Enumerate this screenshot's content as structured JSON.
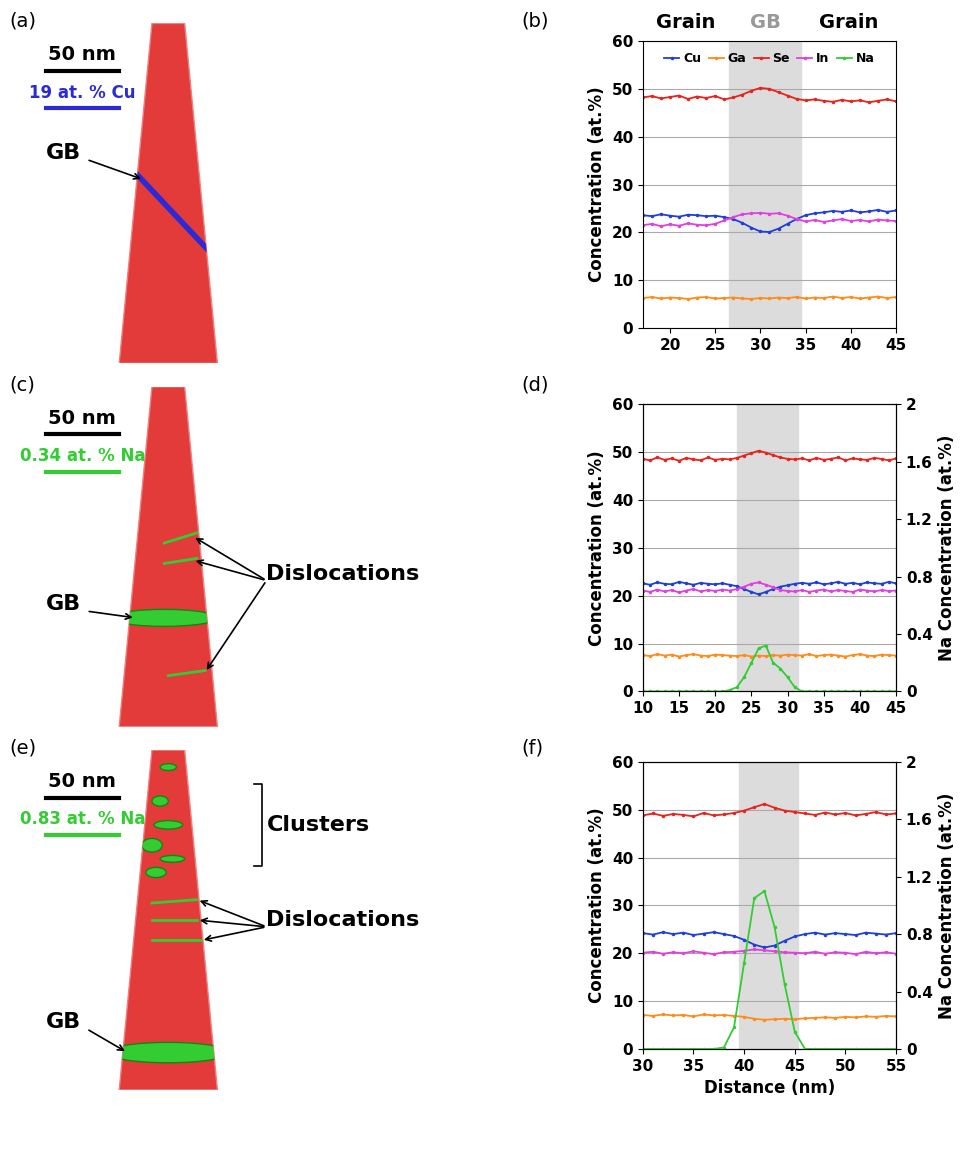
{
  "reconstructions": [
    {
      "label": "(a)",
      "scale_bar": "50 nm",
      "element_bar": {
        "text": "19 at. % Cu",
        "color": "#2a2ad6"
      },
      "annotations": [
        "GB"
      ]
    },
    {
      "label": "(c)",
      "scale_bar": "50 nm",
      "element_bar": {
        "text": "0.34 at. % Na",
        "color": "#33cc33"
      },
      "annotations": [
        "GB",
        "Dislocations"
      ]
    },
    {
      "label": "(e)",
      "scale_bar": "50 nm",
      "element_bar": {
        "text": "0.83 at. % Na",
        "color": "#33cc33"
      },
      "annotations": [
        "Clusters",
        "Dislocations",
        "GB"
      ]
    }
  ],
  "chart_data": [
    {
      "type": "line",
      "label": "(b)",
      "ylabel": "Concentration (at.%)",
      "xlim": [
        17,
        45
      ],
      "xticks": [
        20,
        25,
        30,
        35,
        40,
        45
      ],
      "ylim": [
        0,
        60
      ],
      "yticks": [
        0,
        10,
        20,
        30,
        40,
        50,
        60
      ],
      "grid": true,
      "legend": "upper center",
      "shaded_region": [
        26.5,
        34.5
      ],
      "region_labels": [
        "Grain",
        "GB",
        "Grain"
      ],
      "x": [
        17,
        18,
        19,
        20,
        21,
        22,
        23,
        24,
        25,
        26,
        27,
        28,
        29,
        30,
        31,
        32,
        33,
        34,
        35,
        36,
        37,
        38,
        39,
        40,
        41,
        42,
        43,
        44,
        45
      ],
      "series": [
        {
          "name": "Cu",
          "color": "#1f3fd6",
          "values": [
            23.6,
            23.4,
            23.8,
            23.5,
            23.3,
            23.7,
            23.6,
            23.4,
            23.5,
            23.2,
            22.8,
            22,
            21,
            20.2,
            20.1,
            20.8,
            21.8,
            22.8,
            23.6,
            24,
            24.2,
            24.5,
            24.3,
            24.6,
            24.2,
            24.4,
            24.7,
            24.3,
            24.6
          ]
        },
        {
          "name": "Ga",
          "color": "#ff8c1a",
          "values": [
            6.3,
            6.5,
            6.2,
            6.4,
            6.3,
            6.1,
            6.4,
            6.5,
            6.2,
            6.3,
            6.4,
            6.2,
            6.1,
            6.3,
            6.2,
            6.4,
            6.3,
            6.5,
            6.2,
            6.4,
            6.3,
            6.6,
            6.3,
            6.5,
            6.2,
            6.4,
            6.6,
            6.3,
            6.5
          ]
        },
        {
          "name": "Se",
          "color": "#e8221c",
          "values": [
            48.2,
            48.5,
            48,
            48.3,
            48.6,
            47.9,
            48.4,
            48.1,
            48.5,
            47.8,
            48.2,
            48.8,
            49.6,
            50.2,
            50,
            49.3,
            48.6,
            47.9,
            47.6,
            47.8,
            47.5,
            47.3,
            47.7,
            47.4,
            47.6,
            47.2,
            47.5,
            47.8,
            47.4
          ]
        },
        {
          "name": "In",
          "color": "#e040e0",
          "values": [
            21.5,
            21.8,
            21.3,
            21.7,
            21.4,
            21.9,
            21.6,
            21.5,
            21.8,
            22.5,
            23.2,
            23.8,
            24,
            24.1,
            23.9,
            24,
            23.5,
            22.8,
            22.3,
            22.6,
            22.2,
            22.5,
            22.8,
            22.4,
            22.6,
            22.3,
            22.7,
            22.5,
            22.4
          ]
        },
        {
          "name": "Na",
          "color": "#33cc33",
          "values": [
            null,
            null,
            null,
            null,
            null,
            null,
            null,
            null,
            null,
            null,
            null,
            null,
            null,
            null,
            null,
            null,
            null,
            null,
            null,
            null,
            null,
            null,
            null,
            null,
            null,
            null,
            null,
            null,
            null
          ]
        }
      ]
    },
    {
      "type": "line",
      "label": "(d)",
      "ylabel": "Concentration (at.%)",
      "y2label": "Na Concentration (at.%)",
      "xlim": [
        10,
        45
      ],
      "xticks": [
        10,
        15,
        20,
        25,
        30,
        35,
        40,
        45
      ],
      "ylim": [
        0,
        60
      ],
      "yticks": [
        0,
        10,
        20,
        30,
        40,
        50,
        60
      ],
      "y2lim": [
        0,
        2
      ],
      "y2ticks": [
        0,
        0.4,
        0.8,
        1.2,
        1.6,
        2
      ],
      "grid": true,
      "shaded_region": [
        23,
        31.5
      ],
      "x": [
        10,
        11,
        12,
        13,
        14,
        15,
        16,
        17,
        18,
        19,
        20,
        21,
        22,
        23,
        24,
        25,
        26,
        27,
        28,
        29,
        30,
        31,
        32,
        33,
        34,
        35,
        36,
        37,
        38,
        39,
        40,
        41,
        42,
        43,
        44,
        45
      ],
      "series": [
        {
          "name": "Cu",
          "color": "#1f3fd6",
          "values": [
            22.6,
            22.3,
            22.8,
            22.5,
            22.4,
            22.9,
            22.6,
            22.3,
            22.7,
            22.5,
            22.4,
            22.6,
            22.3,
            22,
            21.4,
            20.8,
            20.3,
            20.8,
            21.4,
            21.9,
            22.2,
            22.5,
            22.7,
            22.5,
            22.8,
            22.4,
            22.6,
            22.9,
            22.5,
            22.7,
            22.4,
            22.8,
            22.6,
            22.5,
            22.9,
            22.6
          ]
        },
        {
          "name": "Ga",
          "color": "#ff8c1a",
          "values": [
            7.6,
            7.4,
            7.8,
            7.5,
            7.7,
            7.3,
            7.6,
            7.8,
            7.5,
            7.4,
            7.7,
            7.6,
            7.5,
            7.4,
            7.6,
            7.3,
            7.5,
            7.4,
            7.6,
            7.5,
            7.7,
            7.6,
            7.5,
            7.8,
            7.4,
            7.6,
            7.7,
            7.5,
            7.3,
            7.6,
            7.8,
            7.5,
            7.4,
            7.7,
            7.6,
            7.5
          ]
        },
        {
          "name": "Se",
          "color": "#e8221c",
          "values": [
            48.6,
            48.3,
            48.9,
            48.4,
            48.7,
            48.2,
            48.8,
            48.5,
            48.3,
            48.9,
            48.4,
            48.6,
            48.5,
            48.8,
            49.3,
            49.8,
            50.3,
            49.9,
            49.4,
            48.9,
            48.6,
            48.5,
            48.7,
            48.3,
            48.8,
            48.4,
            48.6,
            48.9,
            48.3,
            48.7,
            48.5,
            48.4,
            48.8,
            48.6,
            48.3,
            48.7
          ]
        },
        {
          "name": "In",
          "color": "#e040e0",
          "values": [
            21.1,
            20.8,
            21.3,
            20.9,
            21.2,
            20.7,
            21.1,
            21.4,
            20.9,
            21.2,
            21,
            21.3,
            21.1,
            21.4,
            21.9,
            22.5,
            22.8,
            22.3,
            21.8,
            21.2,
            21,
            20.9,
            21.2,
            20.8,
            21.1,
            21.3,
            20.9,
            21.2,
            21,
            20.8,
            21.3,
            21.1,
            20.9,
            21.2,
            21,
            21.1
          ]
        },
        {
          "name": "Na",
          "color": "#33cc33",
          "axis": "y2",
          "values": [
            0,
            0,
            0,
            0,
            0,
            0,
            0,
            0,
            0,
            0,
            0,
            0,
            0.01,
            0.03,
            0.1,
            0.2,
            0.3,
            0.32,
            0.2,
            0.16,
            0.1,
            0.03,
            0,
            0,
            0,
            0,
            0,
            0,
            0,
            0,
            0,
            0,
            0,
            0,
            0,
            0
          ]
        }
      ]
    },
    {
      "type": "line",
      "label": "(f)",
      "ylabel": "Concentration (at.%)",
      "y2label": "Na Concentration (at.%)",
      "xlabel": "Distance (nm)",
      "xlim": [
        30,
        55
      ],
      "xticks": [
        30,
        35,
        40,
        45,
        50,
        55
      ],
      "ylim": [
        0,
        60
      ],
      "yticks": [
        0,
        10,
        20,
        30,
        40,
        50,
        60
      ],
      "y2lim": [
        0,
        2
      ],
      "y2ticks": [
        0,
        0.4,
        0.8,
        1.2,
        1.6,
        2
      ],
      "grid": true,
      "shaded_region": [
        39.5,
        45.3
      ],
      "x": [
        30,
        31,
        32,
        33,
        34,
        35,
        36,
        37,
        38,
        39,
        40,
        41,
        42,
        43,
        44,
        45,
        46,
        47,
        48,
        49,
        50,
        51,
        52,
        53,
        54,
        55
      ],
      "series": [
        {
          "name": "Cu",
          "color": "#1f3fd6",
          "values": [
            24.2,
            23.9,
            24.4,
            24,
            24.3,
            23.8,
            24.1,
            24.4,
            24,
            23.6,
            22.8,
            21.8,
            21.2,
            21.6,
            22.6,
            23.5,
            24,
            24.3,
            23.9,
            24.2,
            24,
            23.8,
            24.3,
            24.1,
            23.9,
            24.2
          ]
        },
        {
          "name": "Ga",
          "color": "#ff8c1a",
          "values": [
            7.1,
            6.9,
            7.2,
            7,
            7.1,
            6.8,
            7.2,
            7,
            7.1,
            6.9,
            6.7,
            6.3,
            6.1,
            6.2,
            6.3,
            6.2,
            6.4,
            6.5,
            6.6,
            6.5,
            6.7,
            6.6,
            6.8,
            6.7,
            6.9,
            6.8
          ]
        },
        {
          "name": "Se",
          "color": "#e8221c",
          "values": [
            48.8,
            49.2,
            48.7,
            49.1,
            48.9,
            48.6,
            49.3,
            48.8,
            49,
            49.3,
            49.8,
            50.5,
            51.2,
            50.4,
            49.8,
            49.5,
            49.2,
            48.9,
            49.4,
            49,
            49.3,
            48.8,
            49.1,
            49.5,
            49,
            49.2
          ]
        },
        {
          "name": "In",
          "color": "#e040e0",
          "values": [
            20.1,
            20.3,
            19.9,
            20.2,
            20,
            20.4,
            20.1,
            19.8,
            20.2,
            20.3,
            20.5,
            20.8,
            20.6,
            20.4,
            20.2,
            20.1,
            20,
            20.3,
            19.9,
            20.2,
            20.1,
            19.8,
            20.3,
            20,
            20.2,
            19.9
          ]
        },
        {
          "name": "Na",
          "color": "#33cc33",
          "axis": "y2",
          "values": [
            0,
            0,
            0,
            0,
            0,
            0,
            0,
            0,
            0.01,
            0.15,
            0.6,
            1.05,
            1.1,
            0.85,
            0.45,
            0.12,
            0,
            0,
            0,
            0,
            0,
            0,
            0,
            0,
            0,
            0
          ]
        }
      ]
    }
  ]
}
